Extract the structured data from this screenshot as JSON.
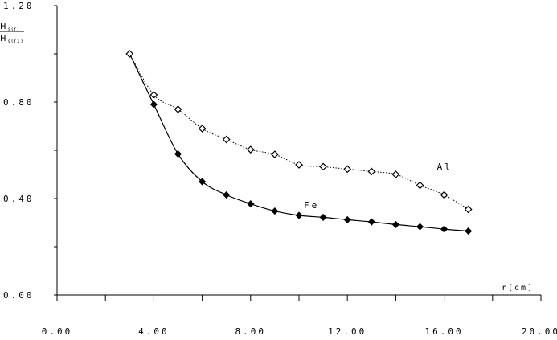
{
  "chart_data": {
    "type": "line",
    "title": "",
    "xlabel": "r[cm]",
    "ylabel": {
      "numerator_main": "H",
      "numerator_sub": "s(r)",
      "denominator_main": "H",
      "denominator_sub": "s(r1)"
    },
    "xlim": [
      0,
      20
    ],
    "ylim": [
      0,
      1.2
    ],
    "x_ticks": [
      "0.00",
      "4.00",
      "8.00",
      "12.00",
      "16.00",
      "20.00"
    ],
    "x_tick_values": [
      0,
      4,
      8,
      12,
      16,
      20
    ],
    "x_minor_ticks": [
      2,
      6,
      10,
      14,
      18
    ],
    "y_ticks": [
      "0.00",
      "0.40",
      "0.80",
      "1.20"
    ],
    "y_tick_values": [
      0,
      0.4,
      0.8,
      1.2
    ],
    "y_minor_ticks": [
      0.2,
      0.6,
      1.0
    ],
    "grid": false,
    "series": [
      {
        "name": "Fe",
        "line": "solid",
        "marker": "filled-diamond",
        "x": [
          3,
          4,
          5,
          6,
          7,
          8,
          9,
          10,
          11,
          12,
          13,
          14,
          15,
          16,
          17
        ],
        "y": [
          1.0,
          0.79,
          0.585,
          0.47,
          0.415,
          0.378,
          0.348,
          0.33,
          0.322,
          0.312,
          0.303,
          0.292,
          0.283,
          0.273,
          0.265
        ]
      },
      {
        "name": "Al",
        "line": "dotted",
        "marker": "open-diamond",
        "x": [
          3,
          4,
          5,
          6,
          7,
          8,
          9,
          10,
          11,
          12,
          13,
          14,
          15,
          16,
          17
        ],
        "y": [
          1.0,
          0.83,
          0.77,
          0.69,
          0.645,
          0.603,
          0.583,
          0.54,
          0.532,
          0.522,
          0.512,
          0.5,
          0.455,
          0.415,
          0.355
        ]
      }
    ],
    "annotations": [
      {
        "text": "Al",
        "series": "Al",
        "x": 15.7,
        "y": 0.52
      },
      {
        "text": "Fe",
        "series": "Fe",
        "x": 10.2,
        "y": 0.36
      }
    ]
  }
}
